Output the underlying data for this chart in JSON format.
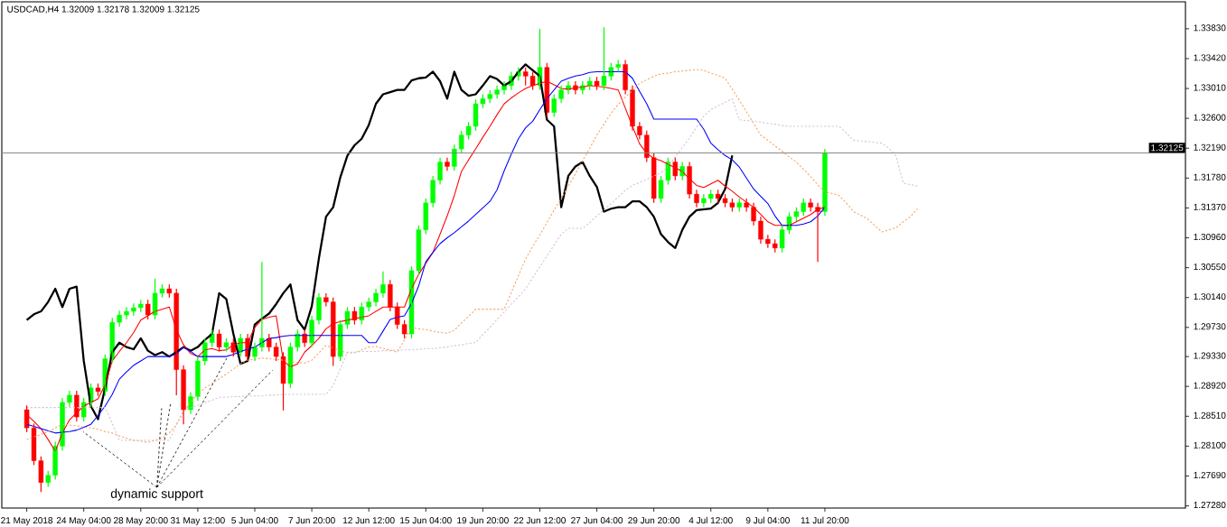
{
  "chart_data": {
    "type": "candlestick",
    "title": "USDCAD,H4  1.32009 1.32178 1.32009 1.32125",
    "categories": [
      "21 May 2018",
      null,
      null,
      null,
      null,
      null,
      null,
      null,
      "24 May 04:00",
      null,
      null,
      null,
      null,
      null,
      null,
      null,
      "28 May 20:00",
      null,
      null,
      null,
      null,
      null,
      null,
      null,
      "31 May 12:00",
      null,
      null,
      null,
      null,
      null,
      null,
      null,
      "5 Jun 04:00",
      null,
      null,
      null,
      null,
      null,
      null,
      null,
      "7 Jun 20:00",
      null,
      null,
      null,
      null,
      null,
      null,
      null,
      "12 Jun 12:00",
      null,
      null,
      null,
      null,
      null,
      null,
      null,
      "15 Jun 04:00",
      null,
      null,
      null,
      null,
      null,
      null,
      null,
      "19 Jun 20:00",
      null,
      null,
      null,
      null,
      null,
      null,
      null,
      "22 Jun 12:00",
      null,
      null,
      null,
      null,
      null,
      null,
      null,
      "27 Jun 04:00",
      null,
      null,
      null,
      null,
      null,
      null,
      null,
      "29 Jun 20:00",
      null,
      null,
      null,
      null,
      null,
      null,
      null,
      "4 Jul 12:00",
      null,
      null,
      null,
      null,
      null,
      null,
      null,
      "9 Jul 04:00",
      null,
      null,
      null,
      null,
      null,
      null,
      null,
      "11 Jul 20:00",
      null,
      null,
      null,
      null,
      null,
      null,
      null,
      null,
      null,
      null,
      null,
      null,
      null
    ],
    "ohlc": [
      [
        1.286,
        1.2866,
        1.2829,
        1.2835
      ],
      [
        1.2835,
        1.2841,
        1.2784,
        1.279
      ],
      [
        1.279,
        1.2796,
        1.2747,
        1.276
      ],
      [
        1.276,
        1.2776,
        1.2754,
        1.277
      ],
      [
        1.277,
        1.2816,
        1.2764,
        1.281
      ],
      [
        1.281,
        1.2876,
        1.2804,
        1.287
      ],
      [
        1.287,
        1.2886,
        1.2864,
        1.288
      ],
      [
        1.288,
        1.2886,
        1.2844,
        1.285
      ],
      [
        1.285,
        1.2876,
        1.2844,
        1.287
      ],
      [
        1.287,
        1.2896,
        1.2864,
        1.289
      ],
      [
        1.289,
        1.2896,
        1.2879,
        1.2885
      ],
      [
        1.2885,
        1.2936,
        1.2879,
        1.293
      ],
      [
        1.293,
        1.2986,
        1.2924,
        1.298
      ],
      [
        1.298,
        1.2996,
        1.2974,
        1.299
      ],
      [
        1.299,
        1.3001,
        1.2984,
        1.2995
      ],
      [
        1.2995,
        1.3006,
        1.2989,
        1.3
      ],
      [
        1.3,
        1.3011,
        1.2994,
        1.3005
      ],
      [
        1.3005,
        1.3011,
        1.2984,
        1.299
      ],
      [
        1.299,
        1.304,
        1.2984,
        1.302
      ],
      [
        1.302,
        1.3032,
        1.3014,
        1.3026
      ],
      [
        1.3026,
        1.3032,
        1.3014,
        1.302
      ],
      [
        1.302,
        1.3026,
        1.288,
        1.2915
      ],
      [
        1.2915,
        1.2921,
        1.284,
        1.286
      ],
      [
        1.286,
        1.2884,
        1.2854,
        1.2878
      ],
      [
        1.2878,
        1.2933,
        1.2872,
        1.2927
      ],
      [
        1.2927,
        1.2958,
        1.2921,
        1.2952
      ],
      [
        1.2952,
        1.297,
        1.2946,
        1.2964
      ],
      [
        1.2964,
        1.297,
        1.294,
        1.2946
      ],
      [
        1.2946,
        1.2958,
        1.294,
        1.2952
      ],
      [
        1.2952,
        1.2958,
        1.2933,
        1.2939
      ],
      [
        1.2939,
        1.2964,
        1.2933,
        1.2958
      ],
      [
        1.2958,
        1.2964,
        1.2927,
        1.2933
      ],
      [
        1.2933,
        1.2952,
        1.2927,
        1.2946
      ],
      [
        1.2946,
        1.3063,
        1.294,
        1.2958
      ],
      [
        1.2958,
        1.2964,
        1.294,
        1.2946
      ],
      [
        1.2946,
        1.2952,
        1.2927,
        1.2933
      ],
      [
        1.2933,
        1.2939,
        1.2859,
        1.2896
      ],
      [
        1.2896,
        1.2952,
        1.289,
        1.2946
      ],
      [
        1.2946,
        1.297,
        1.294,
        1.2964
      ],
      [
        1.2964,
        1.297,
        1.2946,
        1.2952
      ],
      [
        1.2952,
        1.2989,
        1.2946,
        1.2983
      ],
      [
        1.2983,
        1.302,
        1.2977,
        1.3014
      ],
      [
        1.3014,
        1.302,
        1.3002,
        1.3008
      ],
      [
        1.3008,
        1.3014,
        1.292,
        1.2933
      ],
      [
        1.2933,
        1.2983,
        1.2927,
        1.2977
      ],
      [
        1.2977,
        1.3001,
        1.2971,
        1.2995
      ],
      [
        1.2995,
        1.3001,
        1.2977,
        1.2983
      ],
      [
        1.2983,
        1.3007,
        1.2977,
        1.3001
      ],
      [
        1.3001,
        1.3014,
        1.2995,
        1.3008
      ],
      [
        1.3008,
        1.3026,
        1.3002,
        1.302
      ],
      [
        1.302,
        1.305,
        1.3014,
        1.3032
      ],
      [
        1.3032,
        1.3038,
        1.2995,
        1.3001
      ],
      [
        1.3001,
        1.3007,
        1.2971,
        1.2977
      ],
      [
        1.2977,
        1.2983,
        1.2958,
        1.2964
      ],
      [
        1.2964,
        1.3057,
        1.2958,
        1.3051
      ],
      [
        1.3051,
        1.3113,
        1.3045,
        1.3107
      ],
      [
        1.3107,
        1.315,
        1.3101,
        1.3144
      ],
      [
        1.3144,
        1.3181,
        1.3138,
        1.3175
      ],
      [
        1.3175,
        1.3206,
        1.3169,
        1.32
      ],
      [
        1.32,
        1.3206,
        1.3188,
        1.3194
      ],
      [
        1.3194,
        1.3224,
        1.3188,
        1.3218
      ],
      [
        1.3218,
        1.3243,
        1.3212,
        1.3237
      ],
      [
        1.3237,
        1.3255,
        1.3231,
        1.3249
      ],
      [
        1.3249,
        1.3286,
        1.3243,
        1.328
      ],
      [
        1.328,
        1.3293,
        1.3274,
        1.3287
      ],
      [
        1.3287,
        1.3299,
        1.3281,
        1.3293
      ],
      [
        1.3293,
        1.3305,
        1.3287,
        1.3299
      ],
      [
        1.3299,
        1.3311,
        1.3293,
        1.3305
      ],
      [
        1.3305,
        1.3324,
        1.3299,
        1.3318
      ],
      [
        1.3318,
        1.333,
        1.3312,
        1.3324
      ],
      [
        1.3324,
        1.333,
        1.3305,
        1.3318
      ],
      [
        1.3318,
        1.3324,
        1.3299,
        1.3305
      ],
      [
        1.3305,
        1.3383,
        1.3299,
        1.333
      ],
      [
        1.333,
        1.3336,
        1.3262,
        1.3268
      ],
      [
        1.3268,
        1.3293,
        1.3262,
        1.3287
      ],
      [
        1.3287,
        1.3305,
        1.3281,
        1.3299
      ],
      [
        1.3299,
        1.3311,
        1.3293,
        1.3305
      ],
      [
        1.3305,
        1.3311,
        1.3293,
        1.3299
      ],
      [
        1.3299,
        1.3311,
        1.3293,
        1.3305
      ],
      [
        1.3305,
        1.3317,
        1.3299,
        1.3311
      ],
      [
        1.3311,
        1.3317,
        1.3299,
        1.3305
      ],
      [
        1.3305,
        1.3385,
        1.3299,
        1.3318
      ],
      [
        1.3318,
        1.3336,
        1.3312,
        1.333
      ],
      [
        1.333,
        1.334,
        1.3324,
        1.3334
      ],
      [
        1.3334,
        1.334,
        1.3293,
        1.3299
      ],
      [
        1.3299,
        1.3305,
        1.3243,
        1.3249
      ],
      [
        1.3249,
        1.3255,
        1.3231,
        1.3237
      ],
      [
        1.3237,
        1.3243,
        1.32,
        1.3206
      ],
      [
        1.3206,
        1.3212,
        1.3144,
        1.315
      ],
      [
        1.315,
        1.3181,
        1.3144,
        1.3175
      ],
      [
        1.3175,
        1.3206,
        1.3169,
        1.32
      ],
      [
        1.32,
        1.3206,
        1.3175,
        1.3181
      ],
      [
        1.3181,
        1.32,
        1.3175,
        1.3194
      ],
      [
        1.3194,
        1.32,
        1.315,
        1.3156
      ],
      [
        1.3156,
        1.3162,
        1.3138,
        1.3144
      ],
      [
        1.3144,
        1.3156,
        1.3138,
        1.315
      ],
      [
        1.315,
        1.3162,
        1.3144,
        1.3156
      ],
      [
        1.3156,
        1.3162,
        1.3144,
        1.315
      ],
      [
        1.315,
        1.3156,
        1.3138,
        1.3144
      ],
      [
        1.3144,
        1.315,
        1.3132,
        1.3138
      ],
      [
        1.3138,
        1.315,
        1.3132,
        1.3144
      ],
      [
        1.3144,
        1.315,
        1.3132,
        1.3138
      ],
      [
        1.3138,
        1.3144,
        1.3113,
        1.3119
      ],
      [
        1.3119,
        1.3125,
        1.3088,
        1.3094
      ],
      [
        1.3094,
        1.31,
        1.3082,
        1.3088
      ],
      [
        1.3088,
        1.3094,
        1.3076,
        1.3082
      ],
      [
        1.3082,
        1.3113,
        1.3076,
        1.3107
      ],
      [
        1.3107,
        1.3131,
        1.3101,
        1.3125
      ],
      [
        1.3125,
        1.3138,
        1.3119,
        1.3132
      ],
      [
        1.3132,
        1.315,
        1.3126,
        1.3144
      ],
      [
        1.3144,
        1.315,
        1.3132,
        1.3138
      ],
      [
        1.3138,
        1.3144,
        1.3063,
        1.3132
      ],
      [
        1.3132,
        1.3218,
        1.3126,
        1.3212
      ],
      null,
      null,
      null,
      null,
      null,
      null,
      null,
      null,
      null,
      null,
      null,
      null,
      null
    ],
    "colors": [
      "#ff0000",
      "#ff0000",
      "#ff0000",
      "#00ff00",
      "#00ff00",
      "#00ff00",
      "#00ff00",
      "#ff0000",
      "#00ff00",
      "#00ff00",
      "#ff0000",
      "#00ff00",
      "#00ff00",
      "#00ff00",
      "#00ff00",
      "#00ff00",
      "#00ff00",
      "#ff0000",
      "#00ff00",
      "#00ff00",
      "#ff0000",
      "#ff0000",
      "#ff0000",
      "#00ff00",
      "#00ff00",
      "#00ff00",
      "#00ff00",
      "#ff0000",
      "#00ff00",
      "#ff0000",
      "#00ff00",
      "#ff0000",
      "#00ff00",
      "#00ff00",
      "#ff0000",
      "#ff0000",
      "#ff0000",
      "#00ff00",
      "#00ff00",
      "#ff0000",
      "#00ff00",
      "#00ff00",
      "#ff0000",
      "#ff0000",
      "#00ff00",
      "#00ff00",
      "#ff0000",
      "#00ff00",
      "#00ff00",
      "#00ff00",
      "#00ff00",
      "#ff0000",
      "#ff0000",
      "#ff0000",
      "#00ff00",
      "#00ff00",
      "#00ff00",
      "#00ff00",
      "#00ff00",
      "#ff0000",
      "#00ff00",
      "#00ff00",
      "#00ff00",
      "#00ff00",
      "#00ff00",
      "#00ff00",
      "#00ff00",
      "#00ff00",
      "#00ff00",
      "#00ff00",
      "#ff0000",
      "#ff0000",
      "#00ff00",
      "#ff0000",
      "#00ff00",
      "#00ff00",
      "#00ff00",
      "#ff0000",
      "#00ff00",
      "#00ff00",
      "#ff0000",
      "#00ff00",
      "#00ff00",
      "#00ff00",
      "#ff0000",
      "#ff0000",
      "#ff0000",
      "#ff0000",
      "#ff0000",
      "#00ff00",
      "#00ff00",
      "#ff0000",
      "#00ff00",
      "#ff0000",
      "#ff0000",
      "#00ff00",
      "#00ff00",
      "#ff0000",
      "#ff0000",
      "#ff0000",
      "#00ff00",
      "#ff0000",
      "#ff0000",
      "#ff0000",
      "#ff0000",
      "#ff0000",
      "#00ff00",
      "#00ff00",
      "#00ff00",
      "#00ff00",
      "#ff0000",
      "#ff0000",
      "#00ff00",
      null,
      null,
      null,
      null,
      null,
      null,
      null,
      null,
      null,
      null,
      null,
      null,
      null
    ],
    "series": [
      {
        "type": "line",
        "color": "#000000",
        "line_style": "solid",
        "values": [
          1.2983,
          1.2991,
          1.2995,
          1.3008,
          1.3026,
          1.3001,
          1.3026,
          1.3029,
          1.2927,
          1.2865,
          1.2847,
          1.289,
          1.2939,
          1.2952,
          1.2946,
          1.2943,
          1.2958,
          1.2941,
          1.2935,
          1.2939,
          1.2933,
          1.2939,
          1.2946,
          1.2941,
          1.2946,
          1.2956,
          1.2964,
          1.302,
          1.3012,
          1.2964,
          1.2923,
          1.2927,
          1.2977,
          1.2985,
          1.2992,
          1.3005,
          1.302,
          1.3032,
          1.2983,
          1.297,
          1.3002,
          1.3068,
          1.3125,
          1.3138,
          1.3179,
          1.3209,
          1.3223,
          1.3232,
          1.3251,
          1.328,
          1.3293,
          1.3296,
          1.3299,
          1.3299,
          1.3312,
          1.3315,
          1.3316,
          1.3324,
          1.3311,
          1.3287,
          1.3324,
          1.3299,
          1.3291,
          1.3293,
          1.3305,
          1.3318,
          1.3314,
          1.3305,
          1.3311,
          1.3324,
          1.3334,
          1.3326,
          1.3318,
          1.3258,
          1.3249,
          1.3138,
          1.3181,
          1.3194,
          1.32,
          1.3181,
          1.3166,
          1.3132,
          1.3136,
          1.3138,
          1.3138,
          1.3146,
          1.3146,
          1.3138,
          1.3125,
          1.3101,
          1.309,
          1.3082,
          1.3107,
          1.3125,
          1.3134,
          1.3135,
          1.3136,
          1.3144,
          1.3163,
          1.3209,
          null,
          null,
          null,
          null,
          null,
          null,
          null,
          null,
          null,
          null,
          null,
          null,
          null,
          null,
          null,
          null,
          null,
          null,
          null,
          null,
          null,
          null,
          null,
          null,
          null,
          null
        ]
      },
      {
        "type": "line",
        "color": "#ff0000",
        "line_style": "solid",
        "values": [
          1.2853,
          1.2844,
          1.2834,
          1.2819,
          1.2803,
          1.2828,
          1.2846,
          1.2856,
          1.2865,
          1.287,
          1.2875,
          1.2894,
          1.2927,
          1.294,
          1.2952,
          1.2966,
          1.2983,
          1.2989,
          1.2995,
          1.2998,
          1.3001,
          1.297,
          1.2949,
          1.2937,
          1.2933,
          1.2942,
          1.2944,
          1.2941,
          1.2942,
          1.2949,
          1.2952,
          1.2952,
          1.2973,
          1.2984,
          1.2987,
          1.2989,
          1.2927,
          1.2919,
          1.2923,
          1.2939,
          1.2948,
          1.2958,
          1.2971,
          1.2978,
          1.2981,
          1.2983,
          1.2985,
          1.2987,
          1.2989,
          1.2995,
          1.3001,
          1.3001,
          1.3001,
          1.3001,
          1.3026,
          1.3046,
          1.3061,
          1.3076,
          1.3101,
          1.3126,
          1.3154,
          1.3187,
          1.3203,
          1.3218,
          1.3234,
          1.3249,
          1.3265,
          1.328,
          1.3288,
          1.3295,
          1.3301,
          1.3305,
          1.3308,
          1.3311,
          1.3306,
          1.3301,
          1.33,
          1.3302,
          1.3303,
          1.3305,
          1.3304,
          1.3303,
          1.3301,
          1.3299,
          1.3274,
          1.3249,
          1.3225,
          1.3212,
          1.3205,
          1.3202,
          1.3197,
          1.3192,
          1.3187,
          1.3177,
          1.3168,
          1.3165,
          1.317,
          1.3175,
          1.3167,
          1.316,
          1.3152,
          1.3145,
          1.3138,
          1.3128,
          1.3118,
          1.3113,
          1.3113,
          1.3113,
          1.3118,
          1.3123,
          1.3128,
          1.3135,
          1.3138,
          null,
          null,
          null,
          null,
          null,
          null,
          null,
          null,
          null,
          null,
          null,
          null,
          null
        ]
      },
      {
        "type": "line",
        "color": "#0000ff",
        "line_style": "solid",
        "values": [
          1.284,
          1.2837,
          1.2834,
          1.2831,
          1.2828,
          1.2829,
          1.283,
          1.2832,
          1.2836,
          1.284,
          1.2852,
          1.2865,
          1.2881,
          1.2902,
          1.2912,
          1.2921,
          1.2927,
          1.2933,
          1.2933,
          1.2933,
          1.2933,
          1.2937,
          1.2946,
          1.294,
          1.2933,
          1.2933,
          1.2933,
          1.2933,
          1.2933,
          1.2936,
          1.294,
          1.2943,
          1.2946,
          1.2952,
          1.2958,
          1.2959,
          1.2961,
          1.2962,
          1.2962,
          1.2962,
          1.2962,
          1.2962,
          1.2962,
          1.2962,
          1.2962,
          1.2962,
          1.2962,
          1.2962,
          1.2952,
          1.2952,
          1.2968,
          1.2984,
          1.2987,
          1.2989,
          1.3006,
          1.303,
          1.3063,
          1.3076,
          1.3088,
          1.3096,
          1.3103,
          1.3111,
          1.3119,
          1.3128,
          1.3137,
          1.3146,
          1.3162,
          1.3188,
          1.3211,
          1.3232,
          1.3247,
          1.3256,
          1.3272,
          1.3287,
          1.3299,
          1.3311,
          1.3315,
          1.3318,
          1.332,
          1.3323,
          1.3324,
          1.3324,
          1.3324,
          1.3324,
          1.3324,
          1.3315,
          1.3297,
          1.328,
          1.3259,
          1.3259,
          1.3259,
          1.3259,
          1.3259,
          1.3259,
          1.3259,
          1.3245,
          1.3226,
          1.3217,
          1.3209,
          1.3203,
          1.3193,
          1.3178,
          1.3163,
          1.3153,
          1.3143,
          1.3126,
          1.3113,
          1.3113,
          1.3113,
          1.3115,
          1.3118,
          1.3126,
          1.3138,
          null,
          null,
          null,
          null,
          null,
          null,
          null,
          null,
          null,
          null,
          null,
          null,
          null
        ]
      },
      {
        "type": "line",
        "color": "#f4a460",
        "line_style": "dashed",
        "values": [
          1.2819,
          1.2823,
          1.2826,
          1.283,
          1.2835,
          1.284,
          1.2839,
          1.2838,
          1.2836,
          1.2835,
          1.2833,
          1.283,
          1.2828,
          1.2824,
          1.2821,
          1.2818,
          1.2817,
          1.2815,
          1.2818,
          1.2821,
          1.2828,
          1.284,
          1.2856,
          1.2871,
          1.2881,
          1.289,
          1.2896,
          1.2902,
          1.2909,
          1.2916,
          1.2923,
          1.2928,
          1.2929,
          1.2931,
          1.293,
          1.2929,
          1.2928,
          1.2926,
          1.2925,
          1.2924,
          1.2928,
          1.2938,
          1.2948,
          1.2945,
          1.2941,
          1.2938,
          1.2938,
          1.2942,
          1.2946,
          1.2947,
          1.2944,
          1.2942,
          1.2939,
          1.2956,
          1.2973,
          1.2971,
          1.297,
          1.2968,
          1.2966,
          1.2965,
          1.2969,
          1.2979,
          1.2988,
          1.2998,
          1.2998,
          1.2998,
          1.2998,
          1.2998,
          1.3021,
          1.3044,
          1.3067,
          1.3084,
          1.31,
          1.3117,
          1.3134,
          1.315,
          1.3167,
          1.3184,
          1.3202,
          1.3219,
          1.3237,
          1.3252,
          1.3267,
          1.3279,
          1.3289,
          1.3298,
          1.3308,
          1.3313,
          1.3318,
          1.3321,
          1.3322,
          1.3324,
          1.3325,
          1.3326,
          1.3327,
          1.3326,
          1.3322,
          1.3319,
          1.3315,
          1.33,
          1.3285,
          1.3269,
          1.3253,
          1.3237,
          1.323,
          1.3222,
          1.3215,
          1.3207,
          1.32,
          1.319,
          1.318,
          1.3169,
          1.3159,
          1.3157,
          1.3154,
          1.3144,
          1.3132,
          1.3127,
          1.3122,
          1.3113,
          1.3104,
          1.3107,
          1.311,
          1.3118,
          1.3125,
          1.3136
        ]
      },
      {
        "type": "line",
        "color": "#d8bfd8",
        "line_style": "dashed",
        "values": [
          1.2863,
          1.2863,
          1.2863,
          1.2863,
          1.2863,
          1.2863,
          1.2863,
          1.2863,
          1.2863,
          1.2863,
          1.2863,
          1.2863,
          1.2841,
          1.2818,
          1.2818,
          1.2818,
          1.2818,
          1.2818,
          1.2818,
          1.2818,
          1.2818,
          1.2839,
          1.2859,
          1.2863,
          1.2866,
          1.287,
          1.2873,
          1.2877,
          1.2877,
          1.2878,
          1.2878,
          1.2879,
          1.2879,
          1.2879,
          1.288,
          1.288,
          1.2881,
          1.2881,
          1.2881,
          1.2881,
          1.2881,
          1.2881,
          1.2881,
          1.2893,
          1.2916,
          1.2939,
          1.2939,
          1.294,
          1.294,
          1.294,
          1.2941,
          1.2941,
          1.2942,
          1.2942,
          1.2942,
          1.2943,
          1.2944,
          1.2944,
          1.2945,
          1.2946,
          1.2948,
          1.2949,
          1.2951,
          1.2952,
          1.2963,
          1.2973,
          1.2984,
          1.2994,
          1.3005,
          1.3015,
          1.3026,
          1.3041,
          1.3056,
          1.3071,
          1.3086,
          1.3101,
          1.3109,
          1.3109,
          1.3109,
          1.3117,
          1.3126,
          1.3134,
          1.3143,
          1.3152,
          1.3161,
          1.3168,
          1.3172,
          1.3176,
          1.3181,
          1.3185,
          1.3194,
          1.3207,
          1.322,
          1.3233,
          1.3248,
          1.3263,
          1.3272,
          1.3277,
          1.3282,
          1.3287,
          1.3258,
          1.3257,
          1.3256,
          1.3255,
          1.3253,
          1.3252,
          1.325,
          1.3249,
          1.3249,
          1.3249,
          1.3249,
          1.3249,
          1.3249,
          1.3249,
          1.3249,
          1.324,
          1.323,
          1.3229,
          1.3228,
          1.3227,
          1.3226,
          1.3219,
          1.3208,
          1.3171,
          1.3169,
          1.3167
        ]
      }
    ],
    "ylim": [
      1.2725,
      1.342
    ],
    "yticks": [
      {
        "value": 1.2728,
        "label": "1.27280"
      },
      {
        "value": 1.2769,
        "label": "1.27690"
      },
      {
        "value": 1.281,
        "label": "1.28100"
      },
      {
        "value": 1.2851,
        "label": "1.28510"
      },
      {
        "value": 1.2892,
        "label": "1.28920"
      },
      {
        "value": 1.2933,
        "label": "1.29330"
      },
      {
        "value": 1.2973,
        "label": "1.29730"
      },
      {
        "value": 1.3014,
        "label": "1.30140"
      },
      {
        "value": 1.3055,
        "label": "1.30550"
      },
      {
        "value": 1.3096,
        "label": "1.30960"
      },
      {
        "value": 1.3137,
        "label": "1.31370"
      },
      {
        "value": 1.3178,
        "label": "1.31780"
      },
      {
        "value": 1.3219,
        "label": "1.32190"
      },
      {
        "value": 1.326,
        "label": "1.32600"
      },
      {
        "value": 1.3301,
        "label": "1.33010"
      },
      {
        "value": 1.3342,
        "label": "1.33420"
      },
      {
        "value": 1.3383,
        "label": "1.33830"
      }
    ],
    "ref_lines": [
      {
        "axis": "y",
        "value": 1.32125,
        "label": "1.32125",
        "color": "#808080"
      }
    ],
    "annotations": [
      "dynamic support"
    ]
  }
}
